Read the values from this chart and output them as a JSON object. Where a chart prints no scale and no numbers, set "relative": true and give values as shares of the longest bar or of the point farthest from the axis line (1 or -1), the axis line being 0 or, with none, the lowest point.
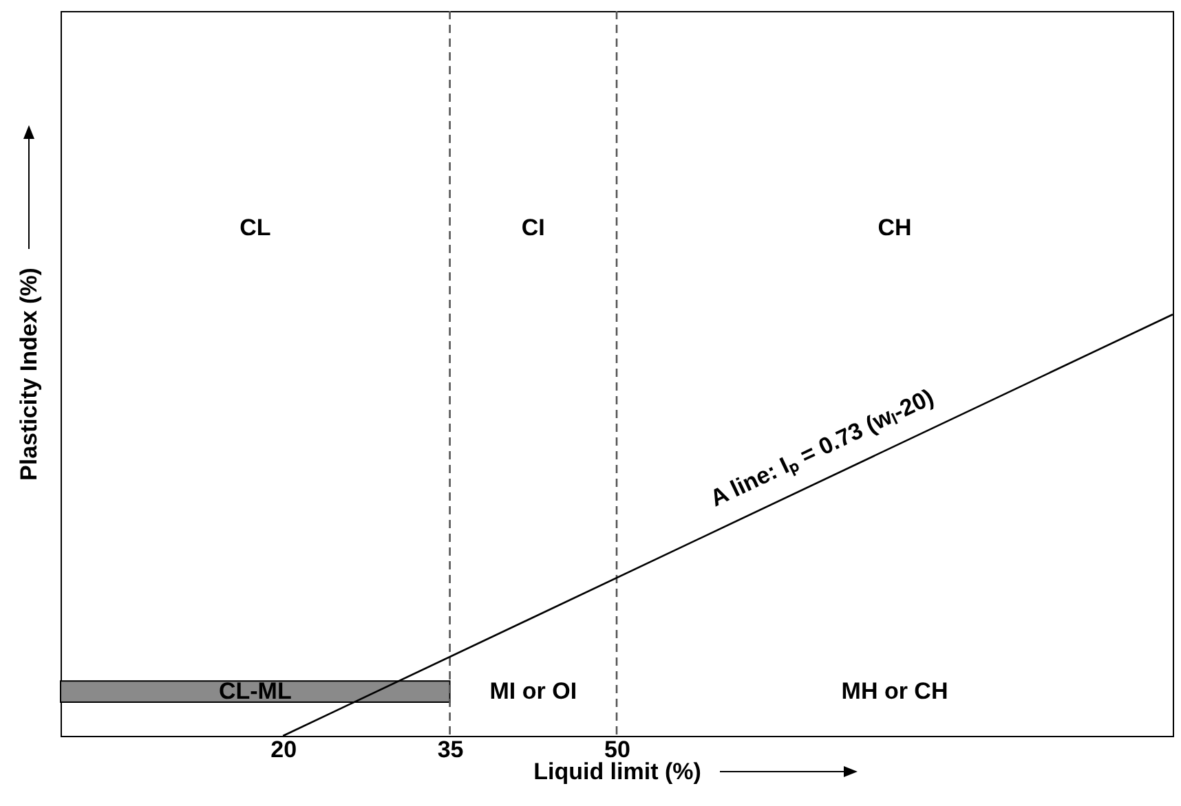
{
  "chart_data": {
    "type": "line",
    "xlabel": "Liquid limit (%)",
    "ylabel": "Plasticity Index (%)",
    "relative": true,
    "xlim": [
      0,
      100
    ],
    "xticks": [
      20,
      35,
      50
    ],
    "grid": false,
    "series": [
      {
        "name": "A line: Iₚ = 0.73 (wₗ-20)",
        "color": "#000000",
        "x": [
          20,
          100
        ],
        "values": [
          0,
          1
        ]
      }
    ],
    "ref_lines": [
      {
        "axis": "x",
        "value": 35,
        "line_style": "dashed",
        "color": "#555555"
      },
      {
        "axis": "x",
        "value": 50,
        "line_style": "dashed",
        "color": "#555555"
      }
    ],
    "bands": [
      {
        "axis": "y",
        "from": 0.08,
        "to": 0.13,
        "label": "CL-ML",
        "color": "#8a8a8a"
      }
    ],
    "annotations": [
      "CL",
      "CI",
      "CH",
      "MI or OI",
      "MH or CH"
    ]
  }
}
